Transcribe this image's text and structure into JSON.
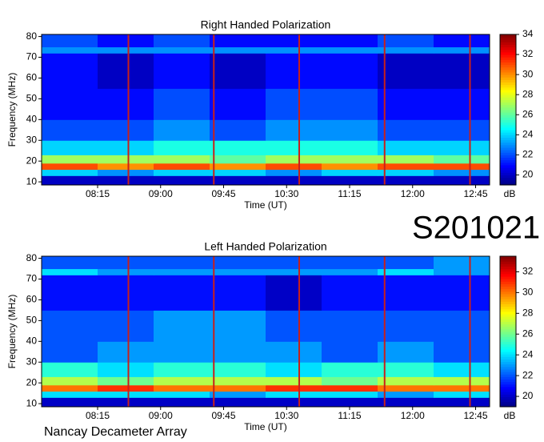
{
  "observation_id": "S201021",
  "instrument": "Nancay Decameter Array",
  "chart_data": [
    {
      "type": "heatmap",
      "title": "Right Handed Polarization",
      "xlabel": "Time (UT)",
      "ylabel": "Frequency (MHz)",
      "zlabel": "dB",
      "x": [
        455,
        495,
        535,
        575,
        615,
        655,
        695,
        735,
        775
      ],
      "y": [
        8.5,
        13,
        16,
        19,
        23,
        30,
        40,
        55,
        72,
        75,
        81
      ],
      "values": [
        [
          20,
          20,
          20,
          20,
          20,
          20,
          20,
          20
        ],
        [
          24,
          23,
          24,
          24,
          23,
          24,
          24,
          23
        ],
        [
          31,
          30,
          31,
          30,
          31,
          30,
          31,
          31
        ],
        [
          27,
          27,
          27,
          26,
          27,
          27,
          27,
          26
        ],
        [
          24,
          24,
          25,
          25,
          25,
          25,
          24,
          24
        ],
        [
          22,
          22,
          23,
          22,
          23,
          23,
          22,
          22
        ],
        [
          21,
          21,
          22,
          21,
          22,
          22,
          21,
          21
        ],
        [
          21,
          20,
          21,
          20,
          21,
          21,
          20,
          20
        ],
        [
          23,
          23,
          23,
          23,
          23,
          23,
          23,
          23
        ],
        [
          22,
          21,
          22,
          21,
          21,
          21,
          22,
          21
        ]
      ],
      "event_lines": [
        517,
        578,
        639,
        700,
        761
      ],
      "event_line_color": "#c8201a",
      "xlim": [
        455,
        775
      ],
      "ylim": [
        8.5,
        81
      ],
      "zlim": [
        19,
        34
      ],
      "xticks": [
        {
          "value": 495,
          "label": "08:15"
        },
        {
          "value": 540,
          "label": "09:00"
        },
        {
          "value": 585,
          "label": "09:45"
        },
        {
          "value": 630,
          "label": "10:30"
        },
        {
          "value": 675,
          "label": "11:15"
        },
        {
          "value": 720,
          "label": "12:00"
        },
        {
          "value": 765,
          "label": "12:45"
        }
      ],
      "yticks": [
        10,
        20,
        30,
        40,
        50,
        60,
        70,
        80
      ],
      "zticks": [
        20,
        22,
        24,
        26,
        28,
        30,
        32,
        34
      ],
      "colormap": "jet"
    },
    {
      "type": "heatmap",
      "title": "Left Handed Polarization",
      "xlabel": "Time (UT)",
      "ylabel": "Frequency (MHz)",
      "zlabel": "dB",
      "x": [
        455,
        495,
        535,
        575,
        615,
        655,
        695,
        735,
        775
      ],
      "y": [
        8.5,
        13,
        16,
        19,
        23,
        30,
        40,
        55,
        72,
        75,
        81
      ],
      "values": [
        [
          20,
          20,
          20,
          20,
          20,
          20,
          20,
          20
        ],
        [
          24,
          24,
          24,
          23,
          24,
          24,
          23,
          24
        ],
        [
          30,
          31,
          30,
          30,
          31,
          31,
          30,
          30
        ],
        [
          27,
          26,
          27,
          27,
          27,
          26,
          27,
          27
        ],
        [
          25,
          24,
          25,
          25,
          24,
          25,
          25,
          24
        ],
        [
          22,
          23,
          23,
          23,
          23,
          22,
          23,
          22
        ],
        [
          22,
          22,
          23,
          23,
          22,
          22,
          22,
          22
        ],
        [
          21,
          21,
          21,
          21,
          20,
          21,
          21,
          21
        ],
        [
          24,
          23,
          23,
          23,
          23,
          23,
          24,
          23
        ],
        [
          22,
          22,
          22,
          22,
          22,
          22,
          22,
          23
        ]
      ],
      "event_lines": [
        517,
        578,
        639,
        700,
        761
      ],
      "event_line_color": "#c8201a",
      "xlim": [
        455,
        775
      ],
      "ylim": [
        8.5,
        81
      ],
      "zlim": [
        19,
        33.5
      ],
      "xticks": [
        {
          "value": 495,
          "label": "08:15"
        },
        {
          "value": 540,
          "label": "09:00"
        },
        {
          "value": 585,
          "label": "09:45"
        },
        {
          "value": 630,
          "label": "10:30"
        },
        {
          "value": 675,
          "label": "11:15"
        },
        {
          "value": 720,
          "label": "12:00"
        },
        {
          "value": 765,
          "label": "12:45"
        }
      ],
      "yticks": [
        10,
        20,
        30,
        40,
        50,
        60,
        70,
        80
      ],
      "zticks": [
        20,
        22,
        24,
        26,
        28,
        30,
        32
      ],
      "colormap": "jet"
    }
  ]
}
